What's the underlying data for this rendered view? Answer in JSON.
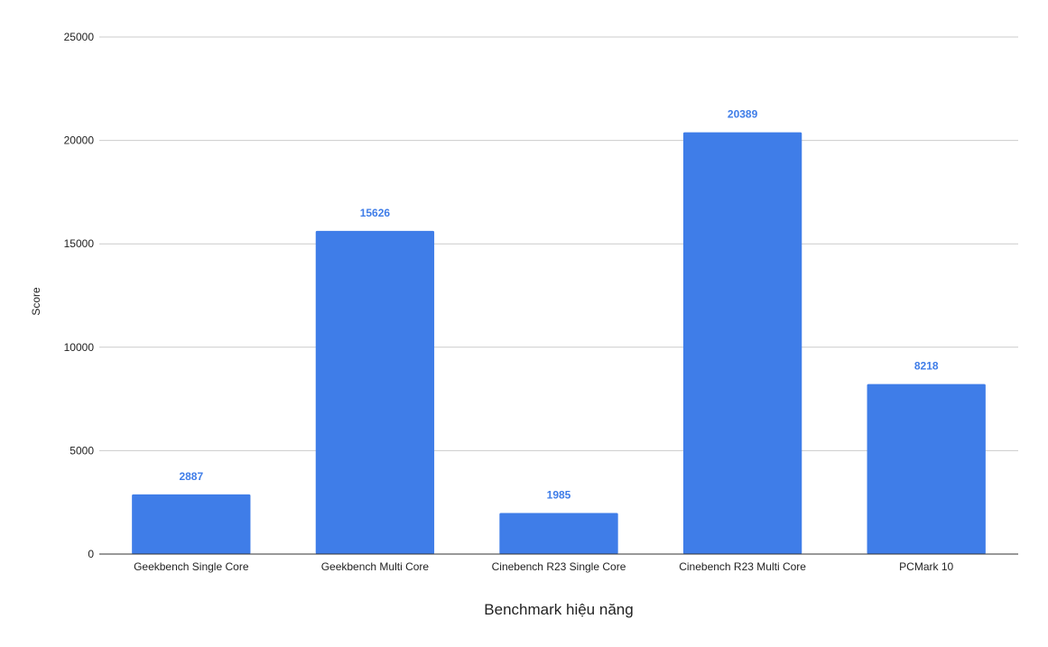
{
  "chart_data": {
    "type": "bar",
    "title": "",
    "xlabel": "Benchmark hiệu năng",
    "ylabel": "Score",
    "categories": [
      "Geekbench Single Core",
      "Geekbench Multi Core",
      "Cinebench R23 Single Core",
      "Cinebench R23 Multi Core",
      "PCMark 10"
    ],
    "values": [
      2887,
      15626,
      1985,
      20389,
      8218
    ],
    "data_labels": [
      "2887",
      "15626",
      "1985",
      "20389",
      "8218"
    ],
    "ylim": [
      0,
      25000
    ],
    "yticks": [
      0,
      5000,
      10000,
      15000,
      20000,
      25000
    ],
    "ytick_labels": [
      "0",
      "5000",
      "10000",
      "15000",
      "20000",
      "25000"
    ],
    "grid": true,
    "legend": "none",
    "bar_color": "#3f7de8",
    "label_color": "#3f7de8"
  }
}
